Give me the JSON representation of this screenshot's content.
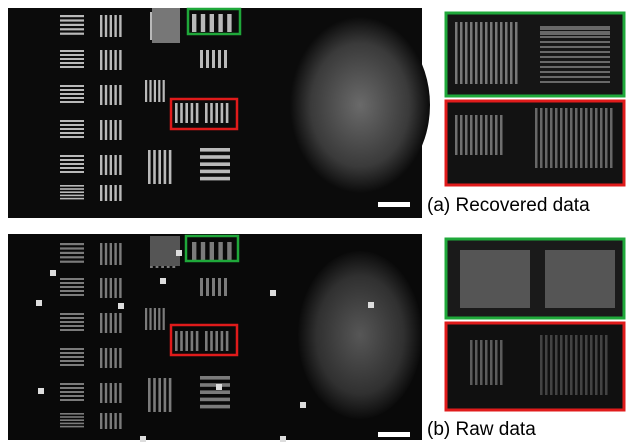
{
  "panels": [
    {
      "caption": "(a) Recovered data"
    },
    {
      "caption": "(b) Raw data"
    }
  ]
}
